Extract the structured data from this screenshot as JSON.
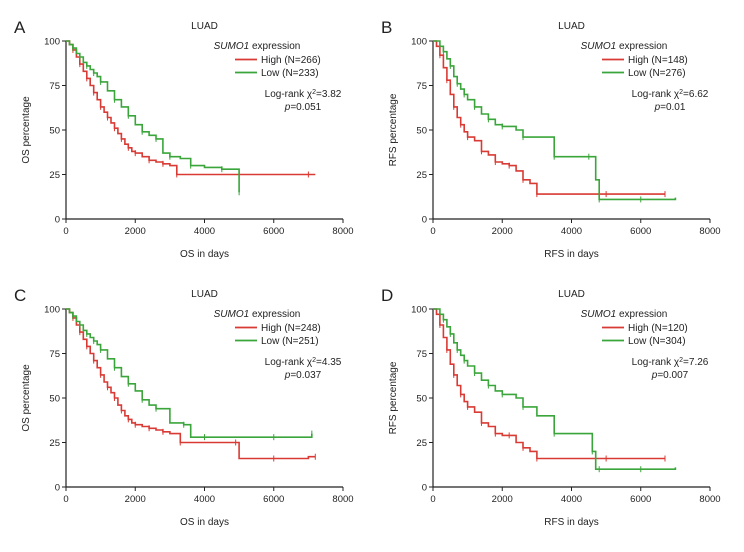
{
  "figure": {
    "colors": {
      "high": "#d93a34",
      "low": "#3aa53a",
      "axis": "#222222"
    }
  },
  "chart_data": [
    {
      "panel": "A",
      "type": "line",
      "title": "LUAD",
      "xlabel": "OS in days",
      "ylabel": "OS percentage",
      "xlim": [
        0,
        8000
      ],
      "ylim": [
        0,
        100
      ],
      "xticks": [
        0,
        2000,
        4000,
        6000,
        8000
      ],
      "yticks": [
        0,
        25,
        50,
        75,
        100
      ],
      "gene": "SUMO1",
      "legend_suffix": " expression",
      "series": [
        {
          "name": "High (N=266)",
          "key": "high",
          "x": [
            0,
            100,
            200,
            300,
            400,
            500,
            600,
            700,
            800,
            900,
            1000,
            1100,
            1200,
            1300,
            1400,
            1500,
            1600,
            1700,
            1800,
            1900,
            2000,
            2200,
            2400,
            2600,
            2800,
            3000,
            3200,
            4000,
            5000,
            6000,
            7000,
            7200
          ],
          "y": [
            100,
            98,
            95,
            91,
            87,
            83,
            79,
            75,
            71,
            67,
            63,
            60,
            57,
            54,
            51,
            48,
            45,
            42,
            40,
            38,
            37,
            35,
            33,
            32,
            31,
            30,
            25,
            25,
            25,
            25,
            25,
            25
          ]
        },
        {
          "name": "Low (N=233)",
          "key": "low",
          "x": [
            0,
            100,
            200,
            300,
            400,
            500,
            600,
            700,
            800,
            900,
            1000,
            1200,
            1400,
            1600,
            1800,
            2000,
            2200,
            2400,
            2600,
            2800,
            3000,
            3300,
            3600,
            4000,
            4500,
            4950,
            5000
          ],
          "y": [
            100,
            98,
            96,
            93,
            91,
            88,
            86,
            84,
            82,
            80,
            77,
            72,
            67,
            63,
            58,
            53,
            49,
            47,
            45,
            37,
            35,
            34,
            30,
            29,
            28,
            28,
            15
          ]
        }
      ],
      "annotations": {
        "logrank_prefix": "Log-rank χ",
        "logrank_exp": "2",
        "logrank_value": "=3.82",
        "p_label": "p",
        "p_value": "=0.051"
      }
    },
    {
      "panel": "B",
      "type": "line",
      "title": "LUAD",
      "xlabel": "RFS in days",
      "ylabel": "RFS percentage",
      "xlim": [
        0,
        8000
      ],
      "ylim": [
        0,
        100
      ],
      "xticks": [
        0,
        2000,
        4000,
        6000,
        8000
      ],
      "yticks": [
        0,
        25,
        50,
        75,
        100
      ],
      "gene": "SUMO1",
      "legend_suffix": " expression",
      "series": [
        {
          "name": "High (N=148)",
          "key": "high",
          "x": [
            0,
            100,
            200,
            300,
            400,
            500,
            600,
            700,
            800,
            900,
            1000,
            1200,
            1400,
            1600,
            1800,
            2000,
            2200,
            2400,
            2600,
            2800,
            3000,
            4000,
            5000,
            6000,
            6700
          ],
          "y": [
            100,
            97,
            92,
            85,
            78,
            70,
            63,
            57,
            53,
            49,
            46,
            44,
            38,
            36,
            32,
            31,
            30,
            27,
            22,
            20,
            14,
            14,
            14,
            14,
            14
          ]
        },
        {
          "name": "Low (N=276)",
          "key": "low",
          "x": [
            0,
            200,
            300,
            400,
            500,
            600,
            700,
            800,
            900,
            1000,
            1200,
            1400,
            1600,
            1800,
            2000,
            2400,
            2600,
            3000,
            3500,
            4000,
            4500,
            4700,
            4800,
            5000,
            6000,
            7000
          ],
          "y": [
            100,
            97,
            94,
            90,
            86,
            80,
            76,
            73,
            70,
            67,
            63,
            59,
            56,
            53,
            52,
            50,
            46,
            46,
            35,
            35,
            35,
            22,
            11,
            11,
            11,
            12
          ]
        }
      ],
      "annotations": {
        "logrank_prefix": "Log-rank χ",
        "logrank_exp": "2",
        "logrank_value": "=6.62",
        "p_label": "p",
        "p_value": "=0.01"
      }
    },
    {
      "panel": "C",
      "type": "line",
      "title": "LUAD",
      "xlabel": "OS in days",
      "ylabel": "OS percentage",
      "xlim": [
        0,
        8000
      ],
      "ylim": [
        0,
        100
      ],
      "xticks": [
        0,
        2000,
        4000,
        6000,
        8000
      ],
      "yticks": [
        0,
        25,
        50,
        75,
        100
      ],
      "gene": "SUMO1",
      "legend_suffix": " expression",
      "series": [
        {
          "name": "High (N=248)",
          "key": "high",
          "x": [
            0,
            100,
            200,
            300,
            400,
            500,
            600,
            700,
            800,
            900,
            1000,
            1100,
            1200,
            1300,
            1400,
            1500,
            1600,
            1700,
            1800,
            1900,
            2000,
            2200,
            2400,
            2600,
            2800,
            3000,
            3300,
            4000,
            4900,
            5000,
            6000,
            7000,
            7200
          ],
          "y": [
            100,
            98,
            95,
            91,
            87,
            83,
            79,
            75,
            71,
            67,
            63,
            59,
            56,
            53,
            50,
            46,
            43,
            40,
            38,
            36,
            35,
            34,
            33,
            32,
            31,
            30,
            25,
            25,
            25,
            16,
            16,
            17,
            17
          ]
        },
        {
          "name": "Low (N=251)",
          "key": "low",
          "x": [
            0,
            100,
            200,
            300,
            400,
            500,
            600,
            700,
            800,
            900,
            1000,
            1200,
            1400,
            1600,
            1800,
            2000,
            2200,
            2400,
            2600,
            3000,
            3400,
            3600,
            4000,
            5000,
            6000,
            7000,
            7100
          ],
          "y": [
            100,
            98,
            96,
            93,
            91,
            88,
            86,
            84,
            82,
            80,
            77,
            72,
            67,
            62,
            58,
            54,
            49,
            46,
            44,
            36,
            35,
            28,
            28,
            28,
            28,
            28,
            30
          ]
        }
      ],
      "annotations": {
        "logrank_prefix": "Log-rank χ",
        "logrank_exp": "2",
        "logrank_value": "=4.35",
        "p_label": "p",
        "p_value": "=0.037"
      }
    },
    {
      "panel": "D",
      "type": "line",
      "title": "LUAD",
      "xlabel": "RFS in days",
      "ylabel": "RFS percentage",
      "xlim": [
        0,
        8000
      ],
      "ylim": [
        0,
        100
      ],
      "xticks": [
        0,
        2000,
        4000,
        6000,
        8000
      ],
      "yticks": [
        0,
        25,
        50,
        75,
        100
      ],
      "gene": "SUMO1",
      "legend_suffix": " expression",
      "series": [
        {
          "name": "High (N=120)",
          "key": "high",
          "x": [
            0,
            100,
            200,
            300,
            400,
            500,
            600,
            700,
            800,
            900,
            1000,
            1200,
            1400,
            1600,
            1800,
            2000,
            2200,
            2400,
            2600,
            2800,
            3000,
            4000,
            5000,
            6000,
            6700
          ],
          "y": [
            100,
            97,
            91,
            84,
            77,
            69,
            63,
            57,
            52,
            48,
            45,
            42,
            36,
            34,
            30,
            29,
            29,
            25,
            22,
            20,
            16,
            16,
            16,
            16,
            16
          ]
        },
        {
          "name": "Low (N=304)",
          "key": "low",
          "x": [
            0,
            200,
            300,
            400,
            500,
            600,
            700,
            800,
            900,
            1000,
            1200,
            1400,
            1600,
            1800,
            2000,
            2400,
            2600,
            3000,
            3500,
            4000,
            4600,
            4700,
            4800,
            5000,
            6000,
            7000
          ],
          "y": [
            100,
            97,
            94,
            90,
            86,
            81,
            77,
            74,
            71,
            68,
            64,
            60,
            57,
            54,
            52,
            50,
            45,
            40,
            30,
            30,
            20,
            10,
            10,
            10,
            10,
            11
          ]
        }
      ],
      "annotations": {
        "logrank_prefix": "Log-rank χ",
        "logrank_exp": "2",
        "logrank_value": "=7.26",
        "p_label": "p",
        "p_value": "=0.007"
      }
    }
  ]
}
